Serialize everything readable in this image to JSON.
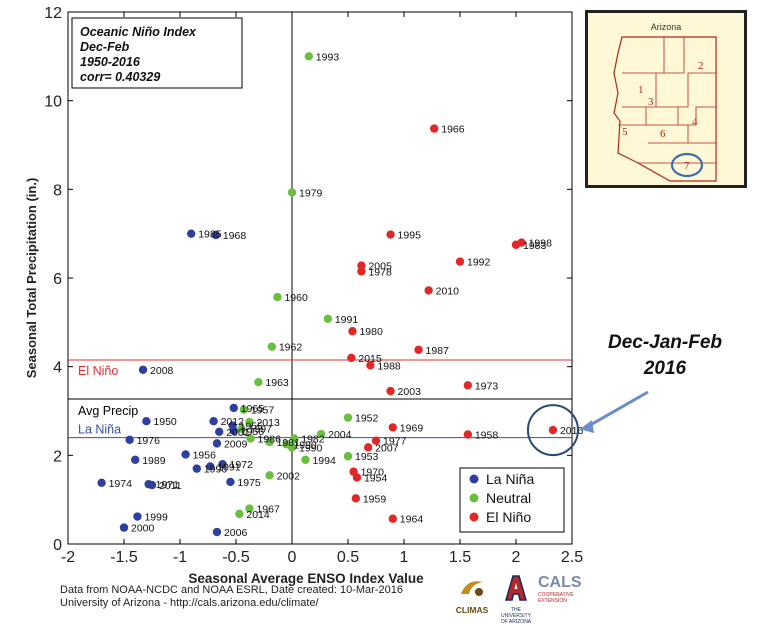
{
  "chart_data": {
    "type": "scatter",
    "info_box": [
      "Oceanic Niño Index",
      "Dec-Feb",
      "1950-2016",
      "corr= 0.40329"
    ],
    "xlabel": "Seasonal Average ENSO Index Value",
    "ylabel": "Seasonal Total Precipitation (in.)",
    "xlim": [
      -2,
      2.5
    ],
    "ylim": [
      0,
      12
    ],
    "xticks": [
      "-2",
      "-1.5",
      "-1",
      "-0.5",
      "0",
      "0.5",
      "1",
      "1.5",
      "2",
      "2.5"
    ],
    "yticks": [
      "0",
      "2",
      "4",
      "6",
      "8",
      "10",
      "12"
    ],
    "grid": false,
    "legend_position": "bottom-right",
    "reference_lines": [
      {
        "label": "El Niño",
        "y": 4.15,
        "color": "#e03030"
      },
      {
        "label": "Avg Precip",
        "y": 3.27,
        "color": "#000000"
      },
      {
        "label": "La Niña",
        "y": 2.4,
        "color": "#3a4fa0"
      }
    ],
    "series": [
      {
        "name": "La Niña",
        "color": "#2f3f9e",
        "points": [
          {
            "x": -0.9,
            "y": 7.0,
            "label": "1985"
          },
          {
            "x": -0.68,
            "y": 6.97,
            "label": "1968"
          },
          {
            "x": -1.33,
            "y": 3.93,
            "label": "2008"
          },
          {
            "x": -1.3,
            "y": 2.77,
            "label": "1950"
          },
          {
            "x": -0.7,
            "y": 2.77,
            "label": "2012"
          },
          {
            "x": -0.52,
            "y": 3.07,
            "label": "1965"
          },
          {
            "x": -0.52,
            "y": 2.55,
            "label": "1956"
          },
          {
            "x": -0.53,
            "y": 2.67,
            "label": "1955"
          },
          {
            "x": -0.65,
            "y": 2.53,
            "label": "2001"
          },
          {
            "x": -1.45,
            "y": 2.35,
            "label": "1976"
          },
          {
            "x": -0.67,
            "y": 2.27,
            "label": "2009"
          },
          {
            "x": -0.95,
            "y": 2.02,
            "label": "1956"
          },
          {
            "x": -1.4,
            "y": 1.9,
            "label": "1989"
          },
          {
            "x": -0.62,
            "y": 1.8,
            "label": "1972"
          },
          {
            "x": -0.73,
            "y": 1.75,
            "label": "1991"
          },
          {
            "x": -0.85,
            "y": 1.7,
            "label": "1996"
          },
          {
            "x": -1.7,
            "y": 1.38,
            "label": "1974"
          },
          {
            "x": -1.28,
            "y": 1.35,
            "label": "1971"
          },
          {
            "x": -1.25,
            "y": 1.33,
            "label": "2011"
          },
          {
            "x": -0.55,
            "y": 1.4,
            "label": "1975"
          },
          {
            "x": -1.38,
            "y": 0.62,
            "label": "1999"
          },
          {
            "x": -1.5,
            "y": 0.37,
            "label": "2000"
          },
          {
            "x": -0.67,
            "y": 0.27,
            "label": "2006"
          }
        ]
      },
      {
        "name": "Neutral",
        "color": "#6abf3f",
        "points": [
          {
            "x": 0.15,
            "y": 11.0,
            "label": "1993"
          },
          {
            "x": 0.0,
            "y": 7.93,
            "label": "1979"
          },
          {
            "x": -0.13,
            "y": 5.57,
            "label": "1960"
          },
          {
            "x": 0.32,
            "y": 5.08,
            "label": "1991"
          },
          {
            "x": -0.18,
            "y": 4.45,
            "label": "1962"
          },
          {
            "x": -0.3,
            "y": 3.65,
            "label": "1963"
          },
          {
            "x": -0.43,
            "y": 3.03,
            "label": "1957"
          },
          {
            "x": 0.5,
            "y": 2.85,
            "label": "1952"
          },
          {
            "x": -0.38,
            "y": 2.75,
            "label": "2013"
          },
          {
            "x": -0.45,
            "y": 2.6,
            "label": "1997"
          },
          {
            "x": -0.37,
            "y": 2.38,
            "label": "1986"
          },
          {
            "x": -0.2,
            "y": 2.3,
            "label": "1981"
          },
          {
            "x": 0.02,
            "y": 2.38,
            "label": "1982"
          },
          {
            "x": 0.26,
            "y": 2.48,
            "label": "2004"
          },
          {
            "x": -0.05,
            "y": 2.25,
            "label": "1990"
          },
          {
            "x": 0.0,
            "y": 2.18,
            "label": "1990"
          },
          {
            "x": 0.5,
            "y": 1.98,
            "label": "1953"
          },
          {
            "x": 0.12,
            "y": 1.9,
            "label": "1994"
          },
          {
            "x": -0.2,
            "y": 1.55,
            "label": "2002"
          },
          {
            "x": -0.38,
            "y": 0.8,
            "label": "1967"
          },
          {
            "x": -0.47,
            "y": 0.68,
            "label": "2014"
          }
        ]
      },
      {
        "name": "El Niño",
        "color": "#e02828",
        "points": [
          {
            "x": 1.27,
            "y": 9.37,
            "label": "1966"
          },
          {
            "x": 0.88,
            "y": 6.98,
            "label": "1995"
          },
          {
            "x": 2.05,
            "y": 6.8,
            "label": "1998"
          },
          {
            "x": 2.0,
            "y": 6.75,
            "label": "1983"
          },
          {
            "x": 1.5,
            "y": 6.37,
            "label": "1992"
          },
          {
            "x": 0.62,
            "y": 6.28,
            "label": "2005"
          },
          {
            "x": 0.62,
            "y": 6.15,
            "label": "1978"
          },
          {
            "x": 1.22,
            "y": 5.72,
            "label": "2010"
          },
          {
            "x": 0.54,
            "y": 4.8,
            "label": "1980"
          },
          {
            "x": 1.13,
            "y": 4.38,
            "label": "1987"
          },
          {
            "x": 0.53,
            "y": 4.2,
            "label": "2015"
          },
          {
            "x": 0.7,
            "y": 4.03,
            "label": "1988"
          },
          {
            "x": 1.57,
            "y": 3.58,
            "label": "1973"
          },
          {
            "x": 0.88,
            "y": 3.45,
            "label": "2003"
          },
          {
            "x": 0.9,
            "y": 2.63,
            "label": "1969"
          },
          {
            "x": 0.75,
            "y": 2.33,
            "label": "1977"
          },
          {
            "x": 0.68,
            "y": 2.18,
            "label": "2007"
          },
          {
            "x": 1.57,
            "y": 2.47,
            "label": "1958"
          },
          {
            "x": 2.33,
            "y": 2.57,
            "label": "2016"
          },
          {
            "x": 0.55,
            "y": 1.63,
            "label": "1970"
          },
          {
            "x": 0.58,
            "y": 1.5,
            "label": "1954"
          },
          {
            "x": 0.57,
            "y": 1.03,
            "label": "1959"
          },
          {
            "x": 0.9,
            "y": 0.57,
            "label": "1964"
          }
        ]
      }
    ],
    "highlight": {
      "x": 2.33,
      "y": 2.57
    },
    "callout": [
      "Dec-Jan-Feb",
      "2016"
    ]
  },
  "footer": {
    "line1": "Data from NOAA-NCDC and NOAA ESRL, Date created: 10-Mar-2016",
    "line2": "University of Arizona - http://cals.arizona.edu/climate/"
  },
  "inset_map": {
    "title": "Arizona",
    "region_numbers": [
      "1",
      "2",
      "3",
      "4",
      "5",
      "6",
      "7"
    ],
    "fill_color": "#fff8d6",
    "line_color": "#b0281e"
  },
  "logos": {
    "climas": "CLIMAS",
    "ua_line1": "THE UNIVERSITY",
    "ua_line2": "OF ARIZONA",
    "cals": "CALS",
    "cals_sub1": "COOPERATIVE",
    "cals_sub2": "EXTENSION"
  }
}
